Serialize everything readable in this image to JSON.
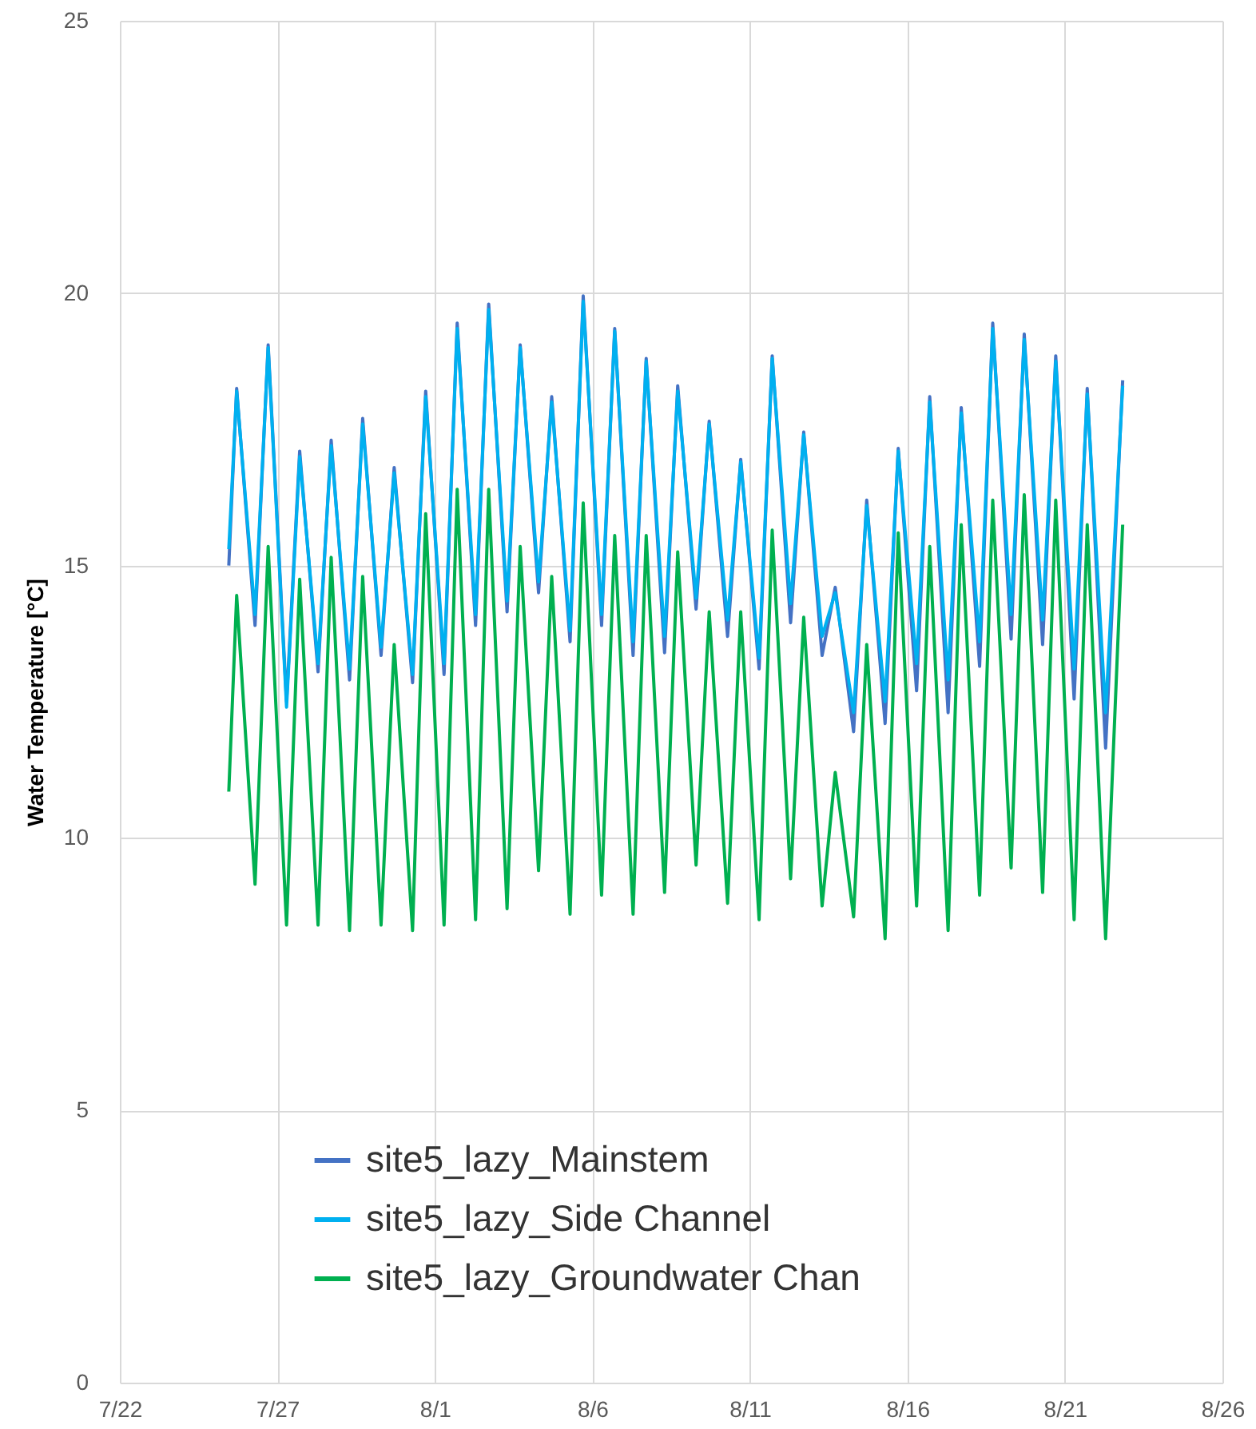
{
  "chart_data": {
    "type": "line",
    "ylabel": "Water Temperature [°C]",
    "grid": true,
    "legend": "bottom left",
    "xlim": [
      "--07-22",
      "--08-26"
    ],
    "xticks": [
      {
        "value": "--07-22",
        "label": "7/22"
      },
      {
        "value": "--07-27",
        "label": "7/27"
      },
      {
        "value": "--08-01",
        "label": "8/1"
      },
      {
        "value": "--08-06",
        "label": "8/6"
      },
      {
        "value": "--08-11",
        "label": "8/11"
      },
      {
        "value": "--08-16",
        "label": "8/16"
      },
      {
        "value": "--08-21",
        "label": "8/21"
      },
      {
        "value": "--08-26",
        "label": "8/26"
      }
    ],
    "ylim": [
      0,
      25
    ],
    "yticks": [
      0,
      5,
      10,
      15,
      20,
      25
    ],
    "x": [
      "--07-25T11:00",
      "--07-25T17:00",
      "--07-26T07:00",
      "--07-26T17:00",
      "--07-27T07:00",
      "--07-27T17:00",
      "--07-28T07:00",
      "--07-28T17:00",
      "--07-29T07:00",
      "--07-29T17:00",
      "--07-30T07:00",
      "--07-30T17:00",
      "--07-31T07:00",
      "--07-31T17:00",
      "--08-01T07:00",
      "--08-01T17:00",
      "--08-02T07:00",
      "--08-02T17:00",
      "--08-03T07:00",
      "--08-03T17:00",
      "--08-04T07:00",
      "--08-04T17:00",
      "--08-05T07:00",
      "--08-05T17:00",
      "--08-06T07:00",
      "--08-06T17:00",
      "--08-07T07:00",
      "--08-07T17:00",
      "--08-08T07:00",
      "--08-08T17:00",
      "--08-09T07:00",
      "--08-09T17:00",
      "--08-10T07:00",
      "--08-10T17:00",
      "--08-11T07:00",
      "--08-11T17:00",
      "--08-12T07:00",
      "--08-12T17:00",
      "--08-13T07:00",
      "--08-13T17:00",
      "--08-14T07:00",
      "--08-14T17:00",
      "--08-15T07:00",
      "--08-15T17:00",
      "--08-16T07:00",
      "--08-16T17:00",
      "--08-17T07:00",
      "--08-17T17:00",
      "--08-18T07:00",
      "--08-18T17:00",
      "--08-19T07:00",
      "--08-19T17:00",
      "--08-20T07:00",
      "--08-20T17:00",
      "--08-21T07:00",
      "--08-21T17:00",
      "--08-22T07:00",
      "--08-22T20:00"
    ],
    "series": [
      {
        "name": "site5_lazy_Mainstem",
        "color": "#4472c4",
        "values": [
          15.0,
          18.25,
          13.9,
          19.05,
          12.5,
          17.1,
          13.05,
          17.3,
          12.9,
          17.7,
          13.35,
          16.8,
          12.85,
          18.2,
          13.0,
          19.45,
          13.9,
          19.8,
          14.15,
          19.05,
          14.5,
          18.1,
          13.6,
          19.95,
          13.9,
          19.35,
          13.35,
          18.8,
          13.4,
          18.3,
          14.2,
          17.65,
          13.7,
          16.95,
          13.1,
          18.85,
          13.95,
          17.45,
          13.35,
          14.6,
          11.95,
          16.2,
          12.1,
          17.15,
          12.7,
          18.1,
          12.3,
          17.9,
          13.15,
          19.45,
          13.65,
          19.25,
          13.55,
          18.85,
          12.55,
          18.25,
          11.65,
          18.4
        ]
      },
      {
        "name": "site5_lazy_Side Channel",
        "color": "#00b0f0",
        "values": [
          15.3,
          18.2,
          14.1,
          19.0,
          12.4,
          17.0,
          13.2,
          17.2,
          13.1,
          17.6,
          13.5,
          16.7,
          13.0,
          18.1,
          13.2,
          19.35,
          14.1,
          19.7,
          14.35,
          19.0,
          14.7,
          18.0,
          13.8,
          19.85,
          14.1,
          19.3,
          13.6,
          18.75,
          13.7,
          18.2,
          14.4,
          17.6,
          14.0,
          16.9,
          13.3,
          18.8,
          14.3,
          17.4,
          13.7,
          14.5,
          12.3,
          16.1,
          12.5,
          17.1,
          13.2,
          18.0,
          12.9,
          17.8,
          13.6,
          19.35,
          14.1,
          19.15,
          14.0,
          18.75,
          13.1,
          18.15,
          12.3,
          18.3
        ]
      },
      {
        "name": "site5_lazy_Groundwater Chan",
        "color": "#00b050",
        "values": [
          10.85,
          14.45,
          9.15,
          15.35,
          8.4,
          14.75,
          8.4,
          15.15,
          8.3,
          14.8,
          8.4,
          13.55,
          8.3,
          15.95,
          8.4,
          16.4,
          8.5,
          16.4,
          8.7,
          15.35,
          9.4,
          14.8,
          8.6,
          16.15,
          8.95,
          15.55,
          8.6,
          15.55,
          9.0,
          15.25,
          9.5,
          14.15,
          8.8,
          14.15,
          8.5,
          15.65,
          9.25,
          14.05,
          8.75,
          11.2,
          8.55,
          13.55,
          8.15,
          15.6,
          8.75,
          15.35,
          8.3,
          15.75,
          8.95,
          16.2,
          9.45,
          16.3,
          9.0,
          16.2,
          8.5,
          15.75,
          8.15,
          15.75
        ]
      }
    ]
  }
}
